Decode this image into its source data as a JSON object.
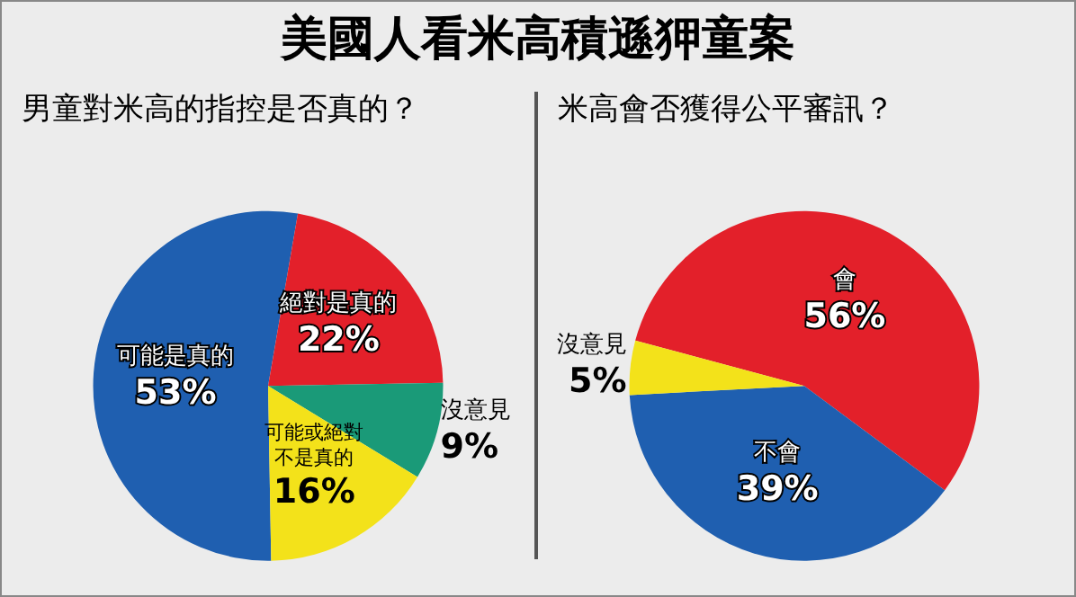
{
  "chart_data": [
    {
      "type": "pie",
      "title": "美國人看米高積遜狎童案",
      "subtitle": "男童對米高的指控是否真的？",
      "categories": [
        "可能是真的",
        "絕對是真的",
        "沒意見",
        "可能或絕對不是真的"
      ],
      "values": [
        53,
        22,
        9,
        16
      ],
      "colors": [
        "#1f5fb0",
        "#e3202a",
        "#1a9a78",
        "#f3e21a"
      ],
      "value_labels": [
        "53%",
        "22%",
        "9%",
        "16%"
      ],
      "legend": false
    },
    {
      "type": "pie",
      "title": "米高會否獲得公平審訊？",
      "categories": [
        "會",
        "不會",
        "沒意見"
      ],
      "values": [
        56,
        39,
        5
      ],
      "colors": [
        "#e3202a",
        "#1f5fb0",
        "#f3e21a"
      ],
      "value_labels": [
        "56%",
        "39%",
        "5%"
      ],
      "legend": false
    }
  ]
}
